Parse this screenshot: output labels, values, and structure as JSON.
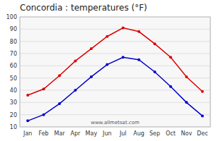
{
  "chart_data": {
    "type": "line",
    "title": "Concordia : temperatures (°F)",
    "categories": [
      "Jan",
      "Feb",
      "Mar",
      "Apr",
      "May",
      "Jun",
      "Jul",
      "Aug",
      "Sep",
      "Oct",
      "Nov",
      "Dec"
    ],
    "series": [
      {
        "color": "#dd0000",
        "marker": "circle",
        "values": [
          36,
          41,
          52,
          64,
          74,
          84,
          91,
          88,
          78,
          67,
          51,
          39
        ]
      },
      {
        "color": "#0000cc",
        "marker": "circle",
        "values": [
          15,
          20,
          29,
          40,
          51,
          61,
          67,
          65,
          55,
          43,
          30,
          19
        ]
      }
    ],
    "ylim": [
      10,
      100
    ],
    "yticks": [
      10,
      20,
      30,
      40,
      50,
      60,
      70,
      80,
      90,
      100
    ],
    "grid": true,
    "annotations": [
      "www.allmetsat.com"
    ]
  }
}
